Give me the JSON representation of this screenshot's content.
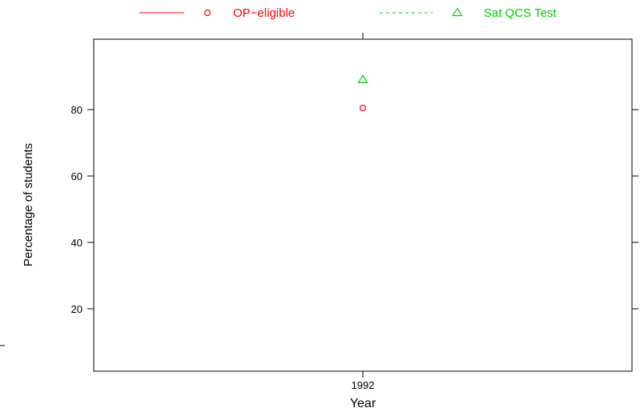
{
  "chart_data": {
    "type": "scatter",
    "xlabel": "Year",
    "ylabel": "Percentage of students",
    "categories": [
      "1992"
    ],
    "ylim": [
      0,
      100
    ],
    "y_ticks": [
      20,
      40,
      60,
      80
    ],
    "grid": false,
    "legend_position": "top",
    "series": [
      {
        "name": "OP−eligible",
        "values": [
          80.5
        ],
        "color": "#ff0000",
        "marker": "circle",
        "line": "solid"
      },
      {
        "name": "Sat QCS Test",
        "values": [
          89
        ],
        "color": "#00cc00",
        "marker": "triangle",
        "line": "dashed"
      }
    ]
  }
}
